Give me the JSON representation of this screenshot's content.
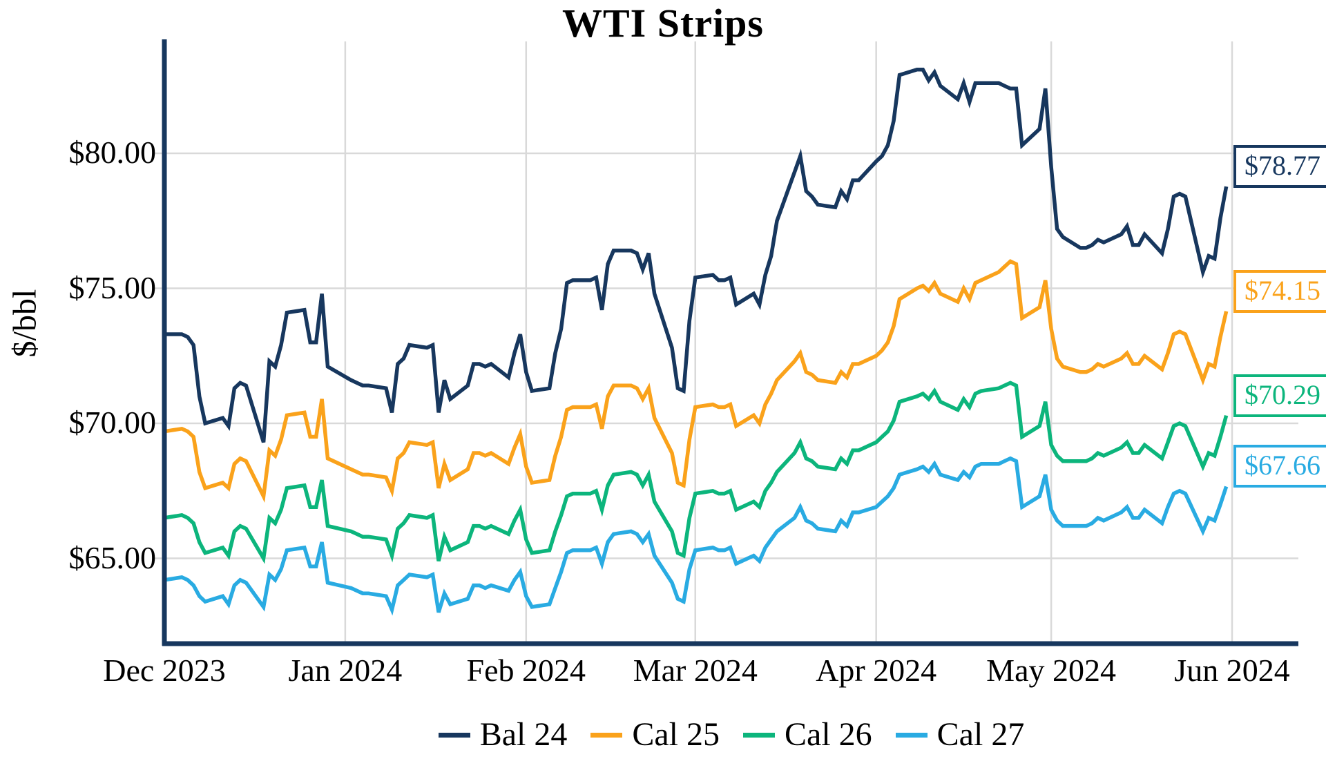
{
  "title": "WTI Strips",
  "y_axis": {
    "label": "$/bbl",
    "ticks": [
      "$80.00",
      "$75.00",
      "$70.00",
      "$65.00"
    ],
    "tick_values": [
      80,
      75,
      70,
      65
    ]
  },
  "x_axis": {
    "ticks": [
      "Dec 2023",
      "Jan 2024",
      "Feb 2024",
      "Mar 2024",
      "Apr 2024",
      "May 2024",
      "Jun 2024"
    ],
    "tick_dates": [
      "2023-12-01",
      "2024-01-01",
      "2024-02-01",
      "2024-03-01",
      "2024-04-01",
      "2024-05-01",
      "2024-06-01"
    ]
  },
  "colors": {
    "bal24": "#17375E",
    "cal25": "#FAA21B",
    "cal26": "#0CB57C",
    "cal27": "#29ABE2",
    "gridline": "#D9D9D9",
    "axis": "#17375E"
  },
  "chart_data": {
    "type": "line",
    "title": "WTI Strips",
    "xlabel": "",
    "ylabel": "$/bbl",
    "ylim": [
      62,
      84
    ],
    "grid": true,
    "legend_position": "bottom",
    "x_tick_labels": [
      "Dec 2023",
      "Jan 2024",
      "Feb 2024",
      "Mar 2024",
      "Apr 2024",
      "May 2024",
      "Jun 2024"
    ],
    "x": [
      "2023-12-01",
      "2023-12-04",
      "2023-12-05",
      "2023-12-06",
      "2023-12-07",
      "2023-12-08",
      "2023-12-11",
      "2023-12-12",
      "2023-12-13",
      "2023-12-14",
      "2023-12-15",
      "2023-12-18",
      "2023-12-19",
      "2023-12-20",
      "2023-12-21",
      "2023-12-22",
      "2023-12-25",
      "2023-12-26",
      "2023-12-27",
      "2023-12-28",
      "2023-12-29",
      "2024-01-02",
      "2024-01-03",
      "2024-01-04",
      "2024-01-05",
      "2024-01-08",
      "2024-01-09",
      "2024-01-10",
      "2024-01-11",
      "2024-01-12",
      "2024-01-15",
      "2024-01-16",
      "2024-01-17",
      "2024-01-18",
      "2024-01-19",
      "2024-01-22",
      "2024-01-23",
      "2024-01-24",
      "2024-01-25",
      "2024-01-26",
      "2024-01-29",
      "2024-01-30",
      "2024-01-31",
      "2024-02-01",
      "2024-02-02",
      "2024-02-05",
      "2024-02-06",
      "2024-02-07",
      "2024-02-08",
      "2024-02-09",
      "2024-02-12",
      "2024-02-13",
      "2024-02-14",
      "2024-02-15",
      "2024-02-16",
      "2024-02-19",
      "2024-02-20",
      "2024-02-21",
      "2024-02-22",
      "2024-02-23",
      "2024-02-26",
      "2024-02-27",
      "2024-02-28",
      "2024-02-29",
      "2024-03-01",
      "2024-03-04",
      "2024-03-05",
      "2024-03-06",
      "2024-03-07",
      "2024-03-08",
      "2024-03-11",
      "2024-03-12",
      "2024-03-13",
      "2024-03-14",
      "2024-03-15",
      "2024-03-18",
      "2024-03-19",
      "2024-03-20",
      "2024-03-21",
      "2024-03-22",
      "2024-03-25",
      "2024-03-26",
      "2024-03-27",
      "2024-03-28",
      "2024-03-29",
      "2024-04-01",
      "2024-04-02",
      "2024-04-03",
      "2024-04-04",
      "2024-04-05",
      "2024-04-08",
      "2024-04-09",
      "2024-04-10",
      "2024-04-11",
      "2024-04-12",
      "2024-04-15",
      "2024-04-16",
      "2024-04-17",
      "2024-04-18",
      "2024-04-19",
      "2024-04-22",
      "2024-04-23",
      "2024-04-24",
      "2024-04-25",
      "2024-04-26",
      "2024-04-29",
      "2024-04-30",
      "2024-05-01",
      "2024-05-02",
      "2024-05-03",
      "2024-05-06",
      "2024-05-07",
      "2024-05-08",
      "2024-05-09",
      "2024-05-10",
      "2024-05-13",
      "2024-05-14",
      "2024-05-15",
      "2024-05-16",
      "2024-05-17",
      "2024-05-20",
      "2024-05-21",
      "2024-05-22",
      "2024-05-23",
      "2024-05-24",
      "2024-05-27",
      "2024-05-28",
      "2024-05-29",
      "2024-05-30",
      "2024-05-31"
    ],
    "series": [
      {
        "name": "Bal 24",
        "color": "#17375E",
        "end_label": "$78.77",
        "end_value": 78.77,
        "values": [
          73.3,
          73.3,
          73.2,
          72.9,
          71.0,
          70.0,
          70.2,
          69.9,
          71.3,
          71.5,
          71.4,
          69.3,
          72.3,
          72.1,
          72.9,
          74.1,
          74.2,
          73.0,
          73.0,
          74.8,
          72.1,
          71.6,
          71.5,
          71.4,
          71.4,
          71.3,
          70.4,
          72.2,
          72.4,
          72.9,
          72.8,
          72.9,
          70.4,
          71.6,
          70.9,
          71.4,
          72.2,
          72.2,
          72.1,
          72.2,
          71.7,
          72.6,
          73.3,
          71.9,
          71.2,
          71.3,
          72.6,
          73.5,
          75.2,
          75.3,
          75.3,
          75.4,
          74.2,
          75.9,
          76.4,
          76.4,
          76.3,
          75.7,
          76.3,
          74.8,
          72.8,
          71.3,
          71.2,
          73.8,
          75.4,
          75.5,
          75.3,
          75.3,
          75.4,
          74.4,
          74.8,
          74.4,
          75.5,
          76.2,
          77.5,
          79.3,
          79.9,
          78.6,
          78.4,
          78.1,
          78.0,
          78.6,
          78.3,
          79.0,
          79.0,
          79.7,
          79.9,
          80.3,
          81.2,
          82.9,
          83.1,
          83.1,
          82.7,
          83.0,
          82.5,
          82.0,
          82.6,
          81.9,
          82.6,
          82.6,
          82.6,
          82.5,
          82.4,
          82.4,
          80.3,
          80.9,
          82.4,
          79.5,
          77.2,
          76.9,
          76.5,
          76.5,
          76.6,
          76.8,
          76.7,
          77.0,
          77.3,
          76.6,
          76.6,
          77.0,
          76.3,
          77.2,
          78.4,
          78.5,
          78.4,
          75.6,
          76.2,
          76.1,
          77.6,
          78.77
        ]
      },
      {
        "name": "Cal 25",
        "color": "#FAA21B",
        "end_label": "$74.15",
        "end_value": 74.15,
        "values": [
          69.7,
          69.8,
          69.7,
          69.5,
          68.2,
          67.6,
          67.8,
          67.6,
          68.5,
          68.7,
          68.6,
          67.3,
          69.0,
          68.8,
          69.4,
          70.3,
          70.4,
          69.5,
          69.5,
          70.9,
          68.7,
          68.3,
          68.2,
          68.1,
          68.1,
          68.0,
          67.5,
          68.7,
          68.9,
          69.3,
          69.2,
          69.3,
          67.6,
          68.5,
          67.9,
          68.3,
          68.9,
          68.9,
          68.8,
          68.9,
          68.5,
          69.1,
          69.6,
          68.4,
          67.8,
          67.9,
          68.8,
          69.5,
          70.5,
          70.6,
          70.6,
          70.7,
          69.8,
          71.0,
          71.4,
          71.4,
          71.3,
          70.9,
          71.3,
          70.2,
          68.9,
          67.8,
          67.7,
          69.4,
          70.6,
          70.7,
          70.6,
          70.6,
          70.7,
          69.9,
          70.3,
          70.0,
          70.7,
          71.1,
          71.6,
          72.3,
          72.6,
          71.9,
          71.8,
          71.6,
          71.5,
          71.9,
          71.7,
          72.2,
          72.2,
          72.5,
          72.7,
          73.0,
          73.6,
          74.6,
          75.0,
          75.1,
          74.9,
          75.2,
          74.8,
          74.5,
          75.0,
          74.6,
          75.2,
          75.3,
          75.6,
          75.8,
          76.0,
          75.9,
          73.9,
          74.3,
          75.3,
          73.5,
          72.4,
          72.1,
          71.9,
          71.9,
          72.0,
          72.2,
          72.1,
          72.4,
          72.6,
          72.2,
          72.2,
          72.5,
          72.0,
          72.6,
          73.3,
          73.4,
          73.3,
          71.6,
          72.2,
          72.1,
          73.2,
          74.15
        ]
      },
      {
        "name": "Cal 26",
        "color": "#0CB57C",
        "end_label": "$70.29",
        "end_value": 70.29,
        "values": [
          66.5,
          66.6,
          66.5,
          66.3,
          65.6,
          65.2,
          65.4,
          65.1,
          66.0,
          66.2,
          66.1,
          65.0,
          66.5,
          66.3,
          66.8,
          67.6,
          67.7,
          66.9,
          66.9,
          67.9,
          66.2,
          66.0,
          65.9,
          65.8,
          65.8,
          65.7,
          65.1,
          66.1,
          66.3,
          66.6,
          66.5,
          66.6,
          64.9,
          65.8,
          65.3,
          65.6,
          66.2,
          66.2,
          66.1,
          66.2,
          65.9,
          66.4,
          66.8,
          65.7,
          65.2,
          65.3,
          66.0,
          66.6,
          67.3,
          67.4,
          67.4,
          67.5,
          66.8,
          67.7,
          68.1,
          68.2,
          68.1,
          67.7,
          68.1,
          67.1,
          66.0,
          65.2,
          65.1,
          66.5,
          67.4,
          67.5,
          67.4,
          67.4,
          67.5,
          66.8,
          67.1,
          66.9,
          67.5,
          67.8,
          68.2,
          68.9,
          69.3,
          68.7,
          68.6,
          68.4,
          68.3,
          68.7,
          68.5,
          69.0,
          69.0,
          69.3,
          69.5,
          69.7,
          70.1,
          70.8,
          71.0,
          71.1,
          70.9,
          71.2,
          70.8,
          70.5,
          70.9,
          70.6,
          71.1,
          71.2,
          71.3,
          71.4,
          71.5,
          71.4,
          69.5,
          69.9,
          70.8,
          69.2,
          68.8,
          68.6,
          68.6,
          68.6,
          68.7,
          68.9,
          68.8,
          69.1,
          69.3,
          68.9,
          68.9,
          69.2,
          68.7,
          69.3,
          69.9,
          70.0,
          69.9,
          68.4,
          68.9,
          68.8,
          69.5,
          70.29
        ]
      },
      {
        "name": "Cal 27",
        "color": "#29ABE2",
        "end_label": "$67.66",
        "end_value": 67.66,
        "values": [
          64.2,
          64.3,
          64.2,
          64.0,
          63.6,
          63.4,
          63.6,
          63.3,
          64.0,
          64.2,
          64.1,
          63.2,
          64.4,
          64.2,
          64.6,
          65.3,
          65.4,
          64.7,
          64.7,
          65.6,
          64.1,
          63.9,
          63.8,
          63.7,
          63.7,
          63.6,
          63.1,
          64.0,
          64.2,
          64.4,
          64.3,
          64.4,
          63.0,
          63.7,
          63.3,
          63.5,
          64.0,
          64.0,
          63.9,
          64.0,
          63.8,
          64.2,
          64.5,
          63.6,
          63.2,
          63.3,
          63.9,
          64.5,
          65.2,
          65.3,
          65.3,
          65.4,
          64.8,
          65.6,
          65.9,
          66.0,
          65.9,
          65.6,
          65.9,
          65.1,
          64.1,
          63.5,
          63.4,
          64.6,
          65.3,
          65.4,
          65.3,
          65.3,
          65.4,
          64.8,
          65.1,
          64.9,
          65.4,
          65.7,
          66.0,
          66.5,
          66.9,
          66.4,
          66.3,
          66.1,
          66.0,
          66.4,
          66.2,
          66.7,
          66.7,
          66.9,
          67.1,
          67.3,
          67.6,
          68.1,
          68.3,
          68.4,
          68.2,
          68.5,
          68.1,
          67.9,
          68.2,
          68.0,
          68.4,
          68.5,
          68.5,
          68.6,
          68.7,
          68.6,
          66.9,
          67.3,
          68.1,
          66.8,
          66.4,
          66.2,
          66.2,
          66.2,
          66.3,
          66.5,
          66.4,
          66.7,
          66.9,
          66.5,
          66.5,
          66.8,
          66.3,
          66.9,
          67.4,
          67.5,
          67.4,
          66.0,
          66.5,
          66.4,
          67.0,
          67.66
        ]
      }
    ]
  }
}
